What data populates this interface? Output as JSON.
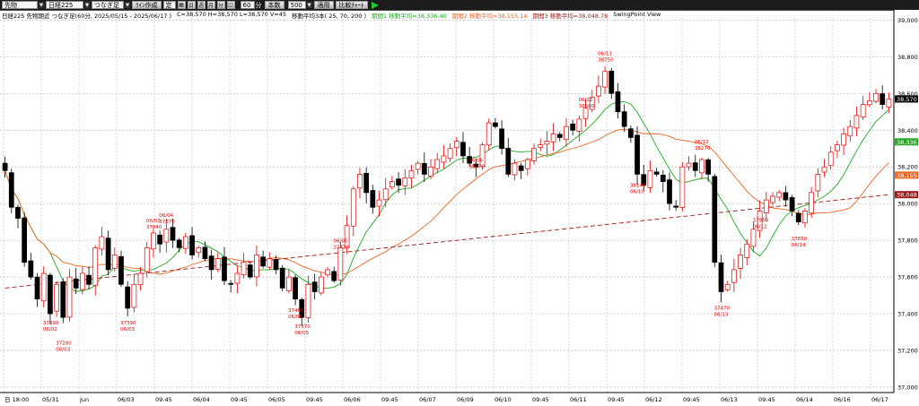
{
  "toolbar": {
    "instrument": "先物",
    "symbol": "日経225",
    "contract": "つなぎ足",
    "draw_button": "ﾗｲﾝ作成",
    "settle_label": "定",
    "minutes": "60",
    "minutes_unit": "分",
    "bars_label": "本数",
    "bars": "500",
    "apply_button": "適用",
    "compare_button": "比較ﾁｬｰﾄ"
  },
  "info": {
    "title": "日経225 先物期近 つなぎ足(60分, 2025/05/15 - 2025/06/17 )",
    "ohlc": "C=38,570 H=38,570 L=38,570 V=45",
    "ma_periods": "移動平均3本( 25, 70, 200 )",
    "ma1": "期間1 移動平均=38,336.40",
    "ma2": "期間2 移動平均=38,155.14",
    "ma3": "期間3 移動平均=38,048.78",
    "brand": "SwingPoint View"
  },
  "colors": {
    "up": "#e60000",
    "down": "#000000",
    "ma1": "#22aa22",
    "ma2": "#ee6622",
    "ma3": "#a01818",
    "grid": "#bdbdbd"
  },
  "price_axis": {
    "ticks": [
      "39,000",
      "38,800",
      "38,600",
      "38,400",
      "38,200",
      "38,000",
      "37,800",
      "37,600",
      "37,400",
      "37,200",
      "37,000"
    ],
    "min": 37000,
    "max": 39000,
    "current_label": "38,570",
    "ma1_label": "38,336",
    "ma2_label": "38,155",
    "ma3_label": "38,048"
  },
  "time_axis": {
    "labels": [
      "日 18:00",
      "05/31",
      "Jun",
      "06/03",
      "09:45",
      "06/04",
      "09:45",
      "06/05",
      "09:45",
      "06/06",
      "09:45",
      "06/07",
      "06/09",
      "06/10",
      "09:45",
      "06/11",
      "09:45",
      "06/12",
      "09:45",
      "06/13",
      "09:45",
      "06/14",
      "06/16",
      "06/17"
    ]
  },
  "chart_data": {
    "type": "candlestick",
    "title": "",
    "xlabel": "",
    "ylabel": "",
    "ylim": [
      37000,
      39000
    ],
    "bar_count": 138,
    "markers": [
      {
        "date": "06/02",
        "price": "37390",
        "kind": "low"
      },
      {
        "date": "06/03",
        "price": "37280",
        "kind": "low"
      },
      {
        "date": "06/03",
        "price": "37840",
        "kind": "high"
      },
      {
        "date": "06/03",
        "price": "37390",
        "kind": "low"
      },
      {
        "date": "06/04",
        "price": "37870",
        "kind": "high"
      },
      {
        "date": "06/05",
        "price": "37730",
        "kind": "high"
      },
      {
        "date": "06/05",
        "price": "37460",
        "kind": "low"
      },
      {
        "date": "06/05",
        "price": "37370",
        "kind": "low"
      },
      {
        "date": "06/06",
        "price": "38170",
        "kind": "high"
      },
      {
        "date": "06/10",
        "price": "38500",
        "kind": "high"
      },
      {
        "date": "06/10",
        "price": "38140",
        "kind": "low"
      },
      {
        "date": "06/11",
        "price": "38750",
        "kind": "high"
      },
      {
        "date": "06/12",
        "price": "38270",
        "kind": "high"
      },
      {
        "date": "06/12",
        "price": "37950",
        "kind": "low"
      },
      {
        "date": "06/13",
        "price": "37470",
        "kind": "low"
      },
      {
        "date": "06/14",
        "price": "37850",
        "kind": "low"
      }
    ],
    "series": [
      {
        "name": "期間1 移動平均",
        "last": 38336.4
      },
      {
        "name": "期間2 移動平均",
        "last": 38155.14
      },
      {
        "name": "期間3 移動平均",
        "last": 38048.78
      }
    ],
    "key_prices": [
      38180,
      37980,
      37920,
      37680,
      37600,
      37480,
      37620,
      37400,
      37560,
      37380,
      37600,
      37540,
      37620,
      37560,
      37760,
      37820,
      37640,
      37720,
      37560,
      37430,
      37560,
      37620,
      37760,
      37840,
      37780,
      37860,
      37800,
      37760,
      37820,
      37720,
      37760,
      37700,
      37640,
      37700,
      37580,
      37560,
      37620,
      37680,
      37600,
      37720,
      37660,
      37700,
      37640,
      37540,
      37600,
      37480,
      37380,
      37560,
      37520,
      37600,
      37640,
      37580,
      37760,
      37880,
      38080,
      38160,
      38060,
      37980,
      38020,
      38080,
      38120,
      38100,
      38140,
      38180,
      38220,
      38160,
      38200,
      38240,
      38260,
      38300,
      38340,
      38260,
      38220,
      38200,
      38320,
      38440,
      38420,
      38300,
      38160,
      38220,
      38180,
      38240,
      38300,
      38320,
      38340,
      38380,
      38360,
      38420,
      38400,
      38460,
      38520,
      38580,
      38640,
      38720,
      38600,
      38500,
      38420,
      38360,
      38160,
      38100,
      38180,
      38160,
      38120,
      38000,
      37980,
      38200,
      38220,
      38180,
      38240,
      38160,
      37680,
      37520,
      37560,
      37640,
      37720,
      37780,
      37860,
      37960,
      38020,
      38040,
      38060,
      38020,
      37960,
      37900,
      37960,
      38060,
      38160,
      38200,
      38280,
      38320,
      38380,
      38420,
      38480,
      38540,
      38560,
      38600,
      38540,
      38570
    ]
  }
}
